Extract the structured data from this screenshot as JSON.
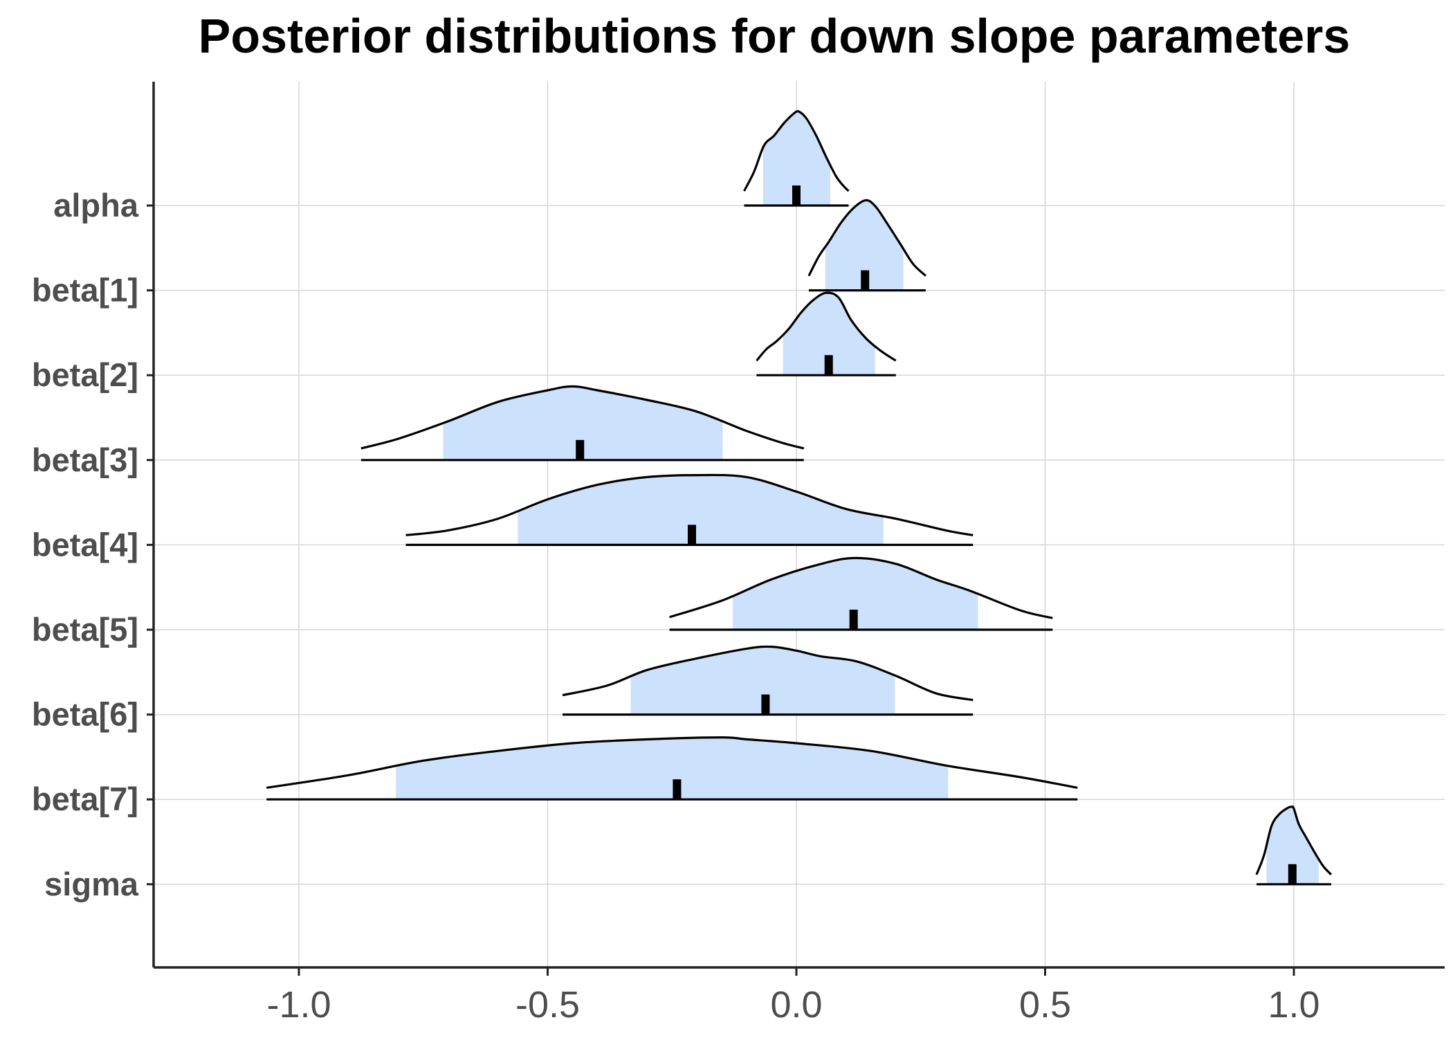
{
  "chart_data": {
    "type": "ridgeline",
    "title": "Posterior distributions for down slope parameters",
    "xlabel": "",
    "ylabel": "",
    "xlim": [
      -1.29,
      1.29
    ],
    "xticks": [
      -1.0,
      -0.5,
      0.0,
      0.5,
      1.0
    ],
    "xtick_labels": [
      "-1.0",
      "-0.5",
      "0.0",
      "0.5",
      "1.0"
    ],
    "grid": true,
    "fill_color": "#cce1fb",
    "line_color": "#000000",
    "median_color": "#000000",
    "parameters": [
      {
        "name": "alpha",
        "min": -0.105,
        "max": 0.105,
        "ci_low": -0.067,
        "ci_high": 0.068,
        "median": 0.0,
        "density": [
          [
            -0.105,
            0.15
          ],
          [
            -0.085,
            0.35
          ],
          [
            -0.065,
            0.62
          ],
          [
            -0.045,
            0.72
          ],
          [
            -0.025,
            0.85
          ],
          [
            -0.005,
            0.95
          ],
          [
            0.005,
            0.97
          ],
          [
            0.02,
            0.9
          ],
          [
            0.04,
            0.72
          ],
          [
            0.06,
            0.5
          ],
          [
            0.08,
            0.3
          ],
          [
            0.095,
            0.2
          ],
          [
            0.105,
            0.15
          ]
        ]
      },
      {
        "name": "beta[1]",
        "min": 0.025,
        "max": 0.26,
        "ci_low": 0.058,
        "ci_high": 0.215,
        "median": 0.138,
        "density": [
          [
            0.025,
            0.15
          ],
          [
            0.045,
            0.35
          ],
          [
            0.065,
            0.5
          ],
          [
            0.09,
            0.7
          ],
          [
            0.115,
            0.85
          ],
          [
            0.14,
            0.93
          ],
          [
            0.16,
            0.86
          ],
          [
            0.185,
            0.67
          ],
          [
            0.21,
            0.47
          ],
          [
            0.235,
            0.27
          ],
          [
            0.26,
            0.15
          ]
        ]
      },
      {
        "name": "beta[2]",
        "min": -0.08,
        "max": 0.2,
        "ci_low": -0.027,
        "ci_high": 0.158,
        "median": 0.065,
        "density": [
          [
            -0.08,
            0.15
          ],
          [
            -0.06,
            0.27
          ],
          [
            -0.04,
            0.35
          ],
          [
            -0.015,
            0.48
          ],
          [
            0.01,
            0.65
          ],
          [
            0.035,
            0.78
          ],
          [
            0.06,
            0.85
          ],
          [
            0.085,
            0.8
          ],
          [
            0.11,
            0.57
          ],
          [
            0.14,
            0.38
          ],
          [
            0.17,
            0.25
          ],
          [
            0.2,
            0.15
          ]
        ]
      },
      {
        "name": "beta[3]",
        "min": -0.875,
        "max": 0.015,
        "ci_low": -0.71,
        "ci_high": -0.148,
        "median": -0.435,
        "density": [
          [
            -0.875,
            0.12
          ],
          [
            -0.8,
            0.22
          ],
          [
            -0.7,
            0.4
          ],
          [
            -0.6,
            0.6
          ],
          [
            -0.5,
            0.72
          ],
          [
            -0.45,
            0.76
          ],
          [
            -0.4,
            0.72
          ],
          [
            -0.3,
            0.62
          ],
          [
            -0.2,
            0.5
          ],
          [
            -0.1,
            0.3
          ],
          [
            -0.03,
            0.18
          ],
          [
            0.015,
            0.12
          ]
        ]
      },
      {
        "name": "beta[4]",
        "min": -0.785,
        "max": 0.355,
        "ci_low": -0.56,
        "ci_high": 0.175,
        "median": -0.21,
        "density": [
          [
            -0.785,
            0.1
          ],
          [
            -0.7,
            0.15
          ],
          [
            -0.6,
            0.27
          ],
          [
            -0.5,
            0.47
          ],
          [
            -0.4,
            0.62
          ],
          [
            -0.3,
            0.7
          ],
          [
            -0.2,
            0.72
          ],
          [
            -0.1,
            0.7
          ],
          [
            0.0,
            0.55
          ],
          [
            0.1,
            0.37
          ],
          [
            0.2,
            0.27
          ],
          [
            0.3,
            0.15
          ],
          [
            0.355,
            0.1
          ]
        ]
      },
      {
        "name": "beta[5]",
        "min": -0.255,
        "max": 0.515,
        "ci_low": -0.128,
        "ci_high": 0.365,
        "median": 0.115,
        "density": [
          [
            -0.255,
            0.13
          ],
          [
            -0.15,
            0.3
          ],
          [
            -0.05,
            0.52
          ],
          [
            0.05,
            0.68
          ],
          [
            0.12,
            0.74
          ],
          [
            0.2,
            0.68
          ],
          [
            0.28,
            0.52
          ],
          [
            0.35,
            0.4
          ],
          [
            0.45,
            0.2
          ],
          [
            0.515,
            0.12
          ]
        ]
      },
      {
        "name": "beta[6]",
        "min": -0.47,
        "max": 0.355,
        "ci_low": -0.333,
        "ci_high": 0.198,
        "median": -0.062,
        "density": [
          [
            -0.47,
            0.2
          ],
          [
            -0.38,
            0.3
          ],
          [
            -0.3,
            0.46
          ],
          [
            -0.2,
            0.58
          ],
          [
            -0.1,
            0.68
          ],
          [
            -0.05,
            0.7
          ],
          [
            0.0,
            0.66
          ],
          [
            0.05,
            0.6
          ],
          [
            0.12,
            0.55
          ],
          [
            0.2,
            0.4
          ],
          [
            0.28,
            0.22
          ],
          [
            0.355,
            0.15
          ]
        ]
      },
      {
        "name": "beta[7]",
        "min": -1.065,
        "max": 0.565,
        "ci_low": -0.805,
        "ci_high": 0.305,
        "median": -0.24,
        "density": [
          [
            -1.065,
            0.12
          ],
          [
            -0.9,
            0.25
          ],
          [
            -0.75,
            0.4
          ],
          [
            -0.6,
            0.5
          ],
          [
            -0.45,
            0.58
          ],
          [
            -0.3,
            0.62
          ],
          [
            -0.15,
            0.64
          ],
          [
            -0.1,
            0.62
          ],
          [
            0.0,
            0.58
          ],
          [
            0.15,
            0.5
          ],
          [
            0.3,
            0.35
          ],
          [
            0.45,
            0.23
          ],
          [
            0.565,
            0.12
          ]
        ]
      },
      {
        "name": "sigma",
        "min": 0.925,
        "max": 1.075,
        "ci_low": 0.945,
        "ci_high": 1.05,
        "median": 0.997,
        "density": [
          [
            0.925,
            0.1
          ],
          [
            0.94,
            0.3
          ],
          [
            0.955,
            0.6
          ],
          [
            0.97,
            0.72
          ],
          [
            0.985,
            0.78
          ],
          [
            0.995,
            0.8
          ],
          [
            1.0,
            0.78
          ],
          [
            1.01,
            0.62
          ],
          [
            1.025,
            0.48
          ],
          [
            1.045,
            0.3
          ],
          [
            1.06,
            0.18
          ],
          [
            1.075,
            0.1
          ]
        ]
      }
    ]
  }
}
